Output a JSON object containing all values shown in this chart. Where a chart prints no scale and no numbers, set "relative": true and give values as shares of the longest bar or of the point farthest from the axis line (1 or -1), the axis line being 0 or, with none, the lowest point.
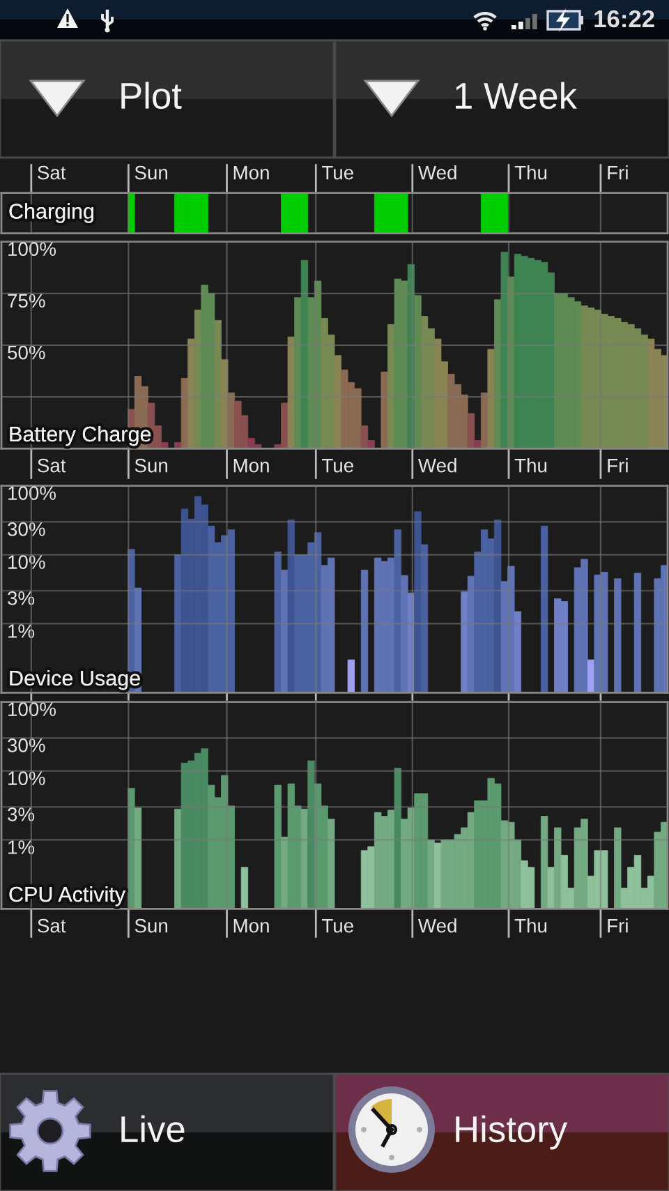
{
  "chart_data": [
    {
      "type": "other",
      "annotations": [
        "16:22",
        "Plot",
        "1 Week"
      ]
    },
    {
      "type": "bar",
      "title": "Charging",
      "relative": true,
      "categories": [
        null,
        null,
        null,
        null,
        null,
        null,
        null,
        "Sat",
        null,
        null,
        null,
        null,
        null,
        null,
        null,
        null,
        null,
        null,
        null,
        null,
        null,
        null,
        "Sun",
        null,
        null,
        null,
        null,
        null,
        null,
        null,
        null,
        null,
        null,
        null,
        null,
        null,
        null,
        "Mon",
        null,
        null,
        null,
        null,
        null,
        null,
        null,
        null,
        null,
        null,
        null,
        null,
        "Tue",
        null,
        null,
        null,
        null,
        null,
        null,
        null,
        null,
        null,
        null,
        null,
        null,
        null,
        null,
        "Wed",
        null,
        null,
        null,
        null,
        null,
        null,
        null,
        null,
        null,
        null,
        null,
        null,
        null,
        "Thu",
        null,
        null,
        null,
        null,
        null,
        null,
        null,
        null,
        null,
        null,
        null,
        null,
        "Fri",
        null,
        null,
        null,
        null,
        null,
        null,
        null
      ],
      "values": [
        null,
        null,
        null,
        null,
        null,
        null,
        null,
        null,
        null,
        null,
        null,
        null,
        null,
        null,
        null,
        null,
        null,
        null,
        null,
        1,
        null,
        null,
        null,
        null,
        null,
        null,
        1,
        1,
        1,
        1,
        1,
        null,
        null,
        null,
        null,
        null,
        null,
        null,
        null,
        null,
        null,
        null,
        1,
        1,
        1,
        1,
        null,
        null,
        null,
        null,
        null,
        null,
        null,
        null,
        null,
        null,
        1,
        1,
        1,
        1,
        1,
        null,
        null,
        null,
        null,
        null,
        null,
        null,
        null,
        null,
        null,
        null,
        1,
        1,
        1,
        1,
        null,
        null,
        null,
        null,
        null,
        null,
        null,
        null,
        null,
        null,
        null,
        null,
        null,
        null,
        null,
        null,
        null,
        null,
        null,
        null,
        null,
        null,
        null,
        null
      ],
      "color": "#00cc00",
      "tick_labels": "x",
      "grid": "x"
    },
    {
      "type": "bar",
      "title": "Battery Charge",
      "categories": [
        null,
        null,
        null,
        null,
        null,
        null,
        null,
        "Sat",
        null,
        null,
        null,
        null,
        null,
        null,
        null,
        null,
        null,
        null,
        null,
        null,
        null,
        null,
        "Sun",
        null,
        null,
        null,
        null,
        null,
        null,
        null,
        null,
        null,
        null,
        null,
        null,
        null,
        null,
        "Mon",
        null,
        null,
        null,
        null,
        null,
        null,
        null,
        null,
        null,
        null,
        null,
        null,
        "Tue",
        null,
        null,
        null,
        null,
        null,
        null,
        null,
        null,
        null,
        null,
        null,
        null,
        null,
        null,
        "Wed",
        null,
        null,
        null,
        null,
        null,
        null,
        null,
        null,
        null,
        null,
        null,
        null,
        null,
        "Thu",
        null,
        null,
        null,
        null,
        null,
        null,
        null,
        null,
        null,
        null,
        null,
        null,
        "Fri",
        null,
        null,
        null,
        null,
        null,
        null,
        null
      ],
      "values": [
        null,
        null,
        null,
        null,
        null,
        null,
        null,
        null,
        null,
        null,
        null,
        null,
        null,
        null,
        null,
        null,
        null,
        null,
        null,
        19,
        35,
        30,
        22,
        11,
        3,
        null,
        3,
        34,
        53,
        67,
        79,
        75,
        62,
        43,
        27,
        23,
        16,
        5,
        2,
        null,
        null,
        2,
        22,
        54,
        73,
        91,
        73,
        81,
        63,
        55,
        45,
        38,
        32,
        29,
        11,
        4,
        null,
        37,
        60,
        82,
        81,
        89,
        74,
        64,
        58,
        53,
        42,
        36,
        31,
        26,
        17,
        4,
        27,
        48,
        72,
        95,
        83,
        94,
        93,
        92,
        91,
        90,
        85,
        75,
        75,
        73,
        71,
        69,
        68,
        67,
        65,
        64,
        63,
        61,
        60,
        58,
        55,
        53,
        48,
        45
      ],
      "colors": [
        null,
        null,
        null,
        null,
        null,
        null,
        null,
        null,
        null,
        null,
        null,
        null,
        null,
        null,
        null,
        null,
        null,
        null,
        null,
        "#8a5050",
        "#8a6a52",
        "#8a6a52",
        "#8a5050",
        "#8a5050",
        "#8a3c50",
        null,
        "#8a3c50",
        "#8a6a52",
        "#8a8454",
        "#788a54",
        "#5e8a54",
        "#5e8a54",
        "#788a54",
        "#8a8454",
        "#8a6a52",
        "#8a5050",
        "#8a5050",
        "#8a3c50",
        "#8a3c50",
        null,
        null,
        "#8a3c50",
        "#8a5050",
        "#8a8454",
        "#5e8a54",
        "#3e8452",
        "#5e8a54",
        "#5e8a54",
        "#788a54",
        "#788a54",
        "#8a8454",
        "#8a6a52",
        "#8a6a52",
        "#8a6a52",
        "#8a5050",
        "#8a3c50",
        null,
        "#8a6a52",
        "#788a54",
        "#5e8a54",
        "#5e8a54",
        "#3e8452",
        "#5e8a54",
        "#788a54",
        "#788a54",
        "#8a8454",
        "#8a8454",
        "#8a6a52",
        "#8a6a52",
        "#8a6a52",
        "#8a5050",
        "#8a3c50",
        "#8a6a52",
        "#8a8454",
        "#5e8a54",
        "#3e8452",
        "#5e8a54",
        "#3e8452",
        "#3e8452",
        "#3e8452",
        "#3e8452",
        "#3e8452",
        "#3e8452",
        "#5e8a54",
        "#5e8a54",
        "#5e8a54",
        "#5e8a54",
        "#788a54",
        "#788a54",
        "#788a54",
        "#788a54",
        "#788a54",
        "#788a54",
        "#788a54",
        "#788a54",
        "#788a54",
        "#788a54",
        "#8a8454",
        "#8a8454",
        "#8a8454"
      ],
      "ylim": [
        0,
        100
      ],
      "yticks": [
        {
          "value": 25,
          "label": null
        },
        {
          "value": 50,
          "label": "50%"
        },
        {
          "value": 75,
          "label": "75%"
        },
        {
          "value": 100,
          "label": "100%"
        }
      ],
      "grid": true
    },
    {
      "type": "bar",
      "title": "Device Usage",
      "log": true,
      "categories": [
        null,
        null,
        null,
        null,
        null,
        null,
        null,
        "Sat",
        null,
        null,
        null,
        null,
        null,
        null,
        null,
        null,
        null,
        null,
        null,
        null,
        null,
        null,
        "Sun",
        null,
        null,
        null,
        null,
        null,
        null,
        null,
        null,
        null,
        null,
        null,
        null,
        null,
        null,
        "Mon",
        null,
        null,
        null,
        null,
        null,
        null,
        null,
        null,
        null,
        null,
        null,
        null,
        "Tue",
        null,
        null,
        null,
        null,
        null,
        null,
        null,
        null,
        null,
        null,
        null,
        null,
        null,
        null,
        "Wed",
        null,
        null,
        null,
        null,
        null,
        null,
        null,
        null,
        null,
        null,
        null,
        null,
        null,
        "Thu",
        null,
        null,
        null,
        null,
        null,
        null,
        null,
        null,
        null,
        null,
        null,
        null,
        "Fri",
        null,
        null,
        null,
        null,
        null,
        null,
        null
      ],
      "values": [
        null,
        null,
        null,
        null,
        null,
        null,
        null,
        null,
        null,
        null,
        null,
        null,
        null,
        null,
        null,
        null,
        null,
        null,
        null,
        12,
        3.3,
        null,
        null,
        null,
        null,
        null,
        10,
        46,
        33,
        70,
        53,
        26,
        15,
        19,
        23,
        null,
        null,
        null,
        null,
        null,
        null,
        11,
        6,
        32,
        10,
        10,
        15,
        21,
        7,
        9,
        null,
        null,
        0.3,
        null,
        6,
        null,
        9,
        8,
        9,
        23,
        5,
        2.8,
        42,
        14,
        null,
        null,
        null,
        null,
        null,
        2.9,
        4.9,
        11,
        23,
        17,
        32,
        4.1,
        6.8,
        1.5,
        null,
        null,
        null,
        26,
        null,
        2.3,
        2.1,
        null,
        6.5,
        8.6,
        0.3,
        5.1,
        5.6,
        null,
        4.5,
        null,
        null,
        5.4,
        null,
        null,
        4.5,
        7
      ],
      "colors": [
        null,
        null,
        null,
        null,
        null,
        null,
        null,
        null,
        null,
        null,
        null,
        null,
        null,
        null,
        null,
        null,
        null,
        null,
        null,
        "#4a62a2",
        "#5e72b4",
        null,
        null,
        null,
        null,
        null,
        "#4a62a2",
        "#3d5490",
        "#3d5490",
        "#3d5490",
        "#3d5490",
        "#4a62a2",
        "#4a62a2",
        "#4a62a2",
        "#4a62a2",
        null,
        null,
        null,
        null,
        null,
        null,
        "#4a62a2",
        "#5e72b4",
        "#3d5490",
        "#4a62a2",
        "#4a62a2",
        "#4a62a2",
        "#4a62a2",
        "#5e72b4",
        "#5e72b4",
        null,
        null,
        "#a0a0f0",
        null,
        "#5e72b4",
        null,
        "#5e72b4",
        "#5e72b4",
        "#5e72b4",
        "#4a62a2",
        "#5e72b4",
        "#7080c8",
        "#3d5490",
        "#4a62a2",
        null,
        null,
        null,
        null,
        null,
        "#7080c8",
        "#5e72b4",
        "#4a62a2",
        "#4a62a2",
        "#4a62a2",
        "#3d5490",
        "#5e72b4",
        "#5e72b4",
        "#7080c8",
        null,
        null,
        null,
        "#4a62a2",
        null,
        "#7080c8",
        "#7080c8",
        null,
        "#5e72b4",
        "#5e72b4",
        "#a0a0f0",
        "#5e72b4",
        "#5e72b4",
        null,
        "#5e72b4",
        null,
        null,
        "#5e72b4",
        null,
        null,
        "#5e72b4",
        "#5e72b4"
      ],
      "ylim": [
        0.1,
        100
      ],
      "yticks": [
        {
          "value": 1,
          "label": "1%"
        },
        {
          "value": 3,
          "label": "3%"
        },
        {
          "value": 10,
          "label": "10%"
        },
        {
          "value": 30,
          "label": "30%"
        },
        {
          "value": 100,
          "label": "100%"
        }
      ],
      "tick_labels": "y",
      "grid": true
    },
    {
      "type": "bar",
      "title": "CPU Activity",
      "log": true,
      "categories": [
        null,
        null,
        null,
        null,
        null,
        null,
        null,
        "Sat",
        null,
        null,
        null,
        null,
        null,
        null,
        null,
        null,
        null,
        null,
        null,
        null,
        null,
        null,
        "Sun",
        null,
        null,
        null,
        null,
        null,
        null,
        null,
        null,
        null,
        null,
        null,
        null,
        null,
        null,
        "Mon",
        null,
        null,
        null,
        null,
        null,
        null,
        null,
        null,
        null,
        null,
        null,
        null,
        "Tue",
        null,
        null,
        null,
        null,
        null,
        null,
        null,
        null,
        null,
        null,
        null,
        null,
        null,
        null,
        "Wed",
        null,
        null,
        null,
        null,
        null,
        null,
        null,
        null,
        null,
        null,
        null,
        null,
        null,
        "Thu",
        null,
        null,
        null,
        null,
        null,
        null,
        null,
        null,
        null,
        null,
        null,
        null,
        "Fri",
        null,
        null,
        null,
        null,
        null,
        null,
        null
      ],
      "values": [
        null,
        null,
        null,
        null,
        null,
        null,
        null,
        null,
        null,
        null,
        null,
        null,
        null,
        null,
        null,
        null,
        null,
        null,
        null,
        5.6,
        2.9,
        null,
        null,
        null,
        null,
        null,
        2.8,
        13,
        14,
        18,
        21,
        6.2,
        4.1,
        8.6,
        3.1,
        null,
        0.4,
        null,
        null,
        null,
        null,
        6.2,
        1.1,
        6.5,
        3.1,
        2.8,
        14,
        6.5,
        3.1,
        2,
        null,
        null,
        null,
        null,
        0.7,
        0.8,
        2.5,
        2.2,
        2.7,
        11,
        2,
        2.9,
        4.7,
        4.7,
        1,
        0.9,
        1,
        1,
        1.2,
        1.5,
        2.5,
        3.7,
        3.7,
        7.8,
        6.5,
        1.9,
        1.8,
        1,
        0.5,
        0.4,
        null,
        2.2,
        0.4,
        1.5,
        0.6,
        0.2,
        1.5,
        2,
        0.3,
        0.7,
        0.7,
        null,
        1.5,
        0.2,
        0.4,
        0.6,
        0.2,
        0.3,
        1.3,
        1.8
      ],
      "colors": [
        null,
        null,
        null,
        null,
        null,
        null,
        null,
        null,
        null,
        null,
        null,
        null,
        null,
        null,
        null,
        null,
        null,
        null,
        null,
        "#5a9a6e",
        "#74aa82",
        null,
        null,
        null,
        null,
        null,
        "#74aa82",
        "#4a8a62",
        "#4a8a62",
        "#4a8a62",
        "#4a8a62",
        "#5a9a6e",
        "#5a9a6e",
        "#5a9a6e",
        "#5a9a6e",
        null,
        "#8ec09c",
        null,
        null,
        null,
        null,
        "#5a9a6e",
        "#74aa82",
        "#5a9a6e",
        "#5a9a6e",
        "#74aa82",
        "#4a8a62",
        "#5a9a6e",
        "#5a9a6e",
        "#74aa82",
        null,
        null,
        null,
        null,
        "#8ec09c",
        "#8ec09c",
        "#74aa82",
        "#74aa82",
        "#74aa82",
        "#4a8a62",
        "#74aa82",
        "#74aa82",
        "#5a9a6e",
        "#5a9a6e",
        "#74aa82",
        "#8ec09c",
        "#74aa82",
        "#74aa82",
        "#74aa82",
        "#74aa82",
        "#74aa82",
        "#5a9a6e",
        "#5a9a6e",
        "#5a9a6e",
        "#5a9a6e",
        "#74aa82",
        "#74aa82",
        "#74aa82",
        "#8ec09c",
        "#8ec09c",
        null,
        "#74aa82",
        "#8ec09c",
        "#74aa82",
        "#8ec09c",
        "#8ec09c",
        "#74aa82",
        "#74aa82",
        "#8ec09c",
        "#8ec09c",
        "#8ec09c",
        null,
        "#74aa82",
        "#8ec09c",
        "#8ec09c",
        "#8ec09c",
        "#8ec09c",
        "#8ec09c",
        "#74aa82",
        "#74aa82"
      ],
      "ylim": [
        0.1,
        100
      ],
      "yticks": [
        {
          "value": 1,
          "label": "1%"
        },
        {
          "value": 3,
          "label": "3%"
        },
        {
          "value": 10,
          "label": "10%"
        },
        {
          "value": 30,
          "label": "30%"
        },
        {
          "value": 100,
          "label": "100%"
        }
      ],
      "grid": true
    },
    {
      "type": "other",
      "annotations": [
        "Live",
        "History"
      ]
    }
  ]
}
